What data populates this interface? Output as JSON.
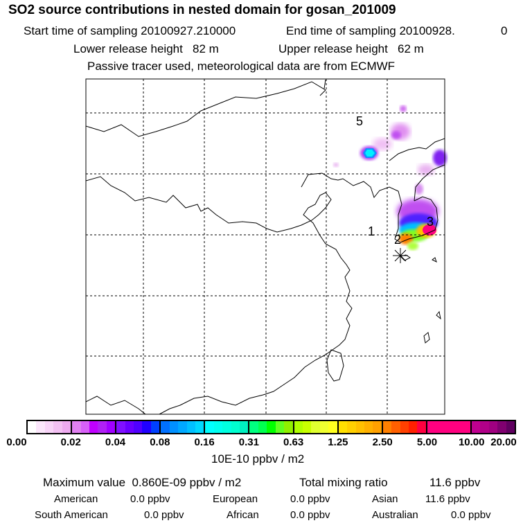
{
  "header": {
    "title": "SO2 source contributions in nested domain for gosan_201009",
    "start_label": "Start time of sampling 20100927.210000",
    "end_label": "End time of sampling 20100928.",
    "end_value": "0",
    "lower_release": "Lower release height   82 m",
    "upper_release": "Upper release height   62 m",
    "tracer_note": "Passive tracer used, meteorological data are from ECMWF"
  },
  "chart_data": {
    "type": "heatmap",
    "title": "SO2 source contributions in nested domain for gosan_201009",
    "region_labels": [
      "1",
      "2",
      "3",
      "5"
    ],
    "colorbar": {
      "unit": "10E-10 ppbv / m2",
      "ticks": [
        "0.00",
        "0.02",
        "0.04",
        "0.08",
        "0.16",
        "0.31",
        "0.63",
        "1.25",
        "2.50",
        "5.00",
        "10.00",
        "20.00"
      ],
      "colors": [
        [
          "#ffffff",
          "#fbe6fb",
          "#f8d4f8",
          "#f3c0f3",
          "#eeaaf0"
        ],
        [
          "#e080f0",
          "#d860f8",
          "#c000ff",
          "#b020f4",
          "#a000ff"
        ],
        [
          "#8010ff",
          "#6a00ff",
          "#5000ff",
          "#2000ff",
          "#0040ff"
        ],
        [
          "#0070ff",
          "#0090ff",
          "#00a8ff",
          "#00c0ff",
          "#00d8ff"
        ],
        [
          "#00ffff",
          "#00fff0",
          "#00ffe0",
          "#00ffd0",
          "#00f0c0"
        ],
        [
          "#00ff80",
          "#00ff50",
          "#00ff00",
          "#60ff20",
          "#90f000"
        ],
        [
          "#b0ff00",
          "#c8ff00",
          "#e0ff30",
          "#f0ff30",
          "#ffff20"
        ],
        [
          "#ffe000",
          "#ffd000",
          "#ffc000",
          "#ffb000",
          "#ffa000"
        ],
        [
          "#ff8000",
          "#ff6000",
          "#ff4000",
          "#ff2000",
          "#ff0040"
        ],
        [
          "#ff0080",
          "#ff0080",
          "#ff0080",
          "#ff0080",
          "#ff0080"
        ],
        [
          "#c00090",
          "#b00088",
          "#a00080",
          "#800070",
          "#600060"
        ]
      ]
    }
  },
  "summary": {
    "max_value": "Maximum value  0.860E-09 ppbv / m2",
    "total_label": "Total mixing ratio",
    "total_value": "11.6 ppbv",
    "rows": [
      [
        {
          "label": "American",
          "value": "0.0 ppbv"
        },
        {
          "label": "European",
          "value": "0.0 ppbv"
        },
        {
          "label": "Asian",
          "value": "11.6 ppbv"
        }
      ],
      [
        {
          "label": "South American",
          "value": "0.0 ppbv"
        },
        {
          "label": "African",
          "value": "0.0 ppbv"
        },
        {
          "label": "Australian",
          "value": "0.0 ppbv"
        }
      ]
    ]
  }
}
